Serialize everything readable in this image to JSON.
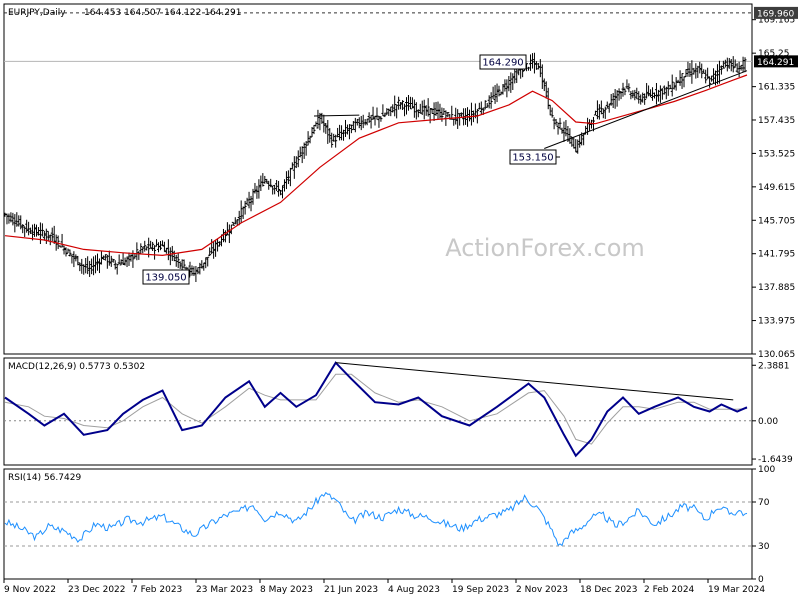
{
  "chart_data": [
    {
      "type": "candlestick",
      "title": "EURJPY,Daily",
      "ohlc_readout": "164.453 164.507 164.122 164.291",
      "watermark": "ActionForex.com",
      "y_ticks": [
        "169.165",
        "165.25",
        "161.335",
        "157.435",
        "153.525",
        "149.615",
        "145.705",
        "141.795",
        "137.885",
        "133.975",
        "130.065"
      ],
      "ylim": [
        130.065,
        171.0
      ],
      "top_label": "169.960",
      "last_price": "164.291",
      "annotations": [
        {
          "text": "164.290",
          "value": 164.29
        },
        {
          "text": "153.150",
          "value": 153.15
        },
        {
          "text": "139.050",
          "value": 139.05
        }
      ],
      "x_labels": [
        "9 Nov 2022",
        "23 Dec 2022",
        "7 Feb 2023",
        "23 Mar 2023",
        "8 May 2023",
        "21 Jun 2023",
        "4 Aug 2023",
        "19 Sep 2023",
        "2 Nov 2023",
        "18 Dec 2023",
        "2 Feb 2024",
        "19 Mar 2024"
      ],
      "price_path": [
        [
          0,
          146.4
        ],
        [
          12,
          144.6
        ],
        [
          24,
          143.8
        ],
        [
          34,
          141.5
        ],
        [
          42,
          139.9
        ],
        [
          50,
          141.4
        ],
        [
          56,
          140.6
        ],
        [
          62,
          141.0
        ],
        [
          70,
          142.4
        ],
        [
          80,
          142.7
        ],
        [
          88,
          141.0
        ],
        [
          96,
          139.5
        ],
        [
          100,
          140.5
        ],
        [
          108,
          143.0
        ],
        [
          116,
          145.3
        ],
        [
          124,
          148.0
        ],
        [
          132,
          150.5
        ],
        [
          140,
          149.0
        ],
        [
          150,
          153.6
        ],
        [
          160,
          157.7
        ],
        [
          166,
          155.0
        ],
        [
          172,
          156.0
        ],
        [
          180,
          157.2
        ],
        [
          192,
          157.9
        ],
        [
          200,
          159.4
        ],
        [
          210,
          158.7
        ],
        [
          220,
          158.3
        ],
        [
          228,
          157.7
        ],
        [
          236,
          157.9
        ],
        [
          244,
          159.2
        ],
        [
          254,
          161.4
        ],
        [
          262,
          163.4
        ],
        [
          268,
          164.1
        ],
        [
          272,
          163.3
        ],
        [
          278,
          157.5
        ],
        [
          284,
          156.2
        ],
        [
          290,
          154.1
        ],
        [
          296,
          156.7
        ],
        [
          300,
          158.1
        ],
        [
          306,
          159.1
        ],
        [
          314,
          161.3
        ],
        [
          322,
          159.9
        ],
        [
          330,
          160.6
        ],
        [
          338,
          161.2
        ],
        [
          346,
          162.9
        ],
        [
          352,
          163.3
        ],
        [
          358,
          162.0
        ],
        [
          366,
          164.2
        ],
        [
          372,
          163.4
        ],
        [
          377,
          164.3
        ]
      ],
      "ma_path": [
        [
          0,
          143.9
        ],
        [
          20,
          143.4
        ],
        [
          40,
          142.3
        ],
        [
          60,
          141.9
        ],
        [
          80,
          141.6
        ],
        [
          100,
          142.3
        ],
        [
          120,
          145.4
        ],
        [
          140,
          147.8
        ],
        [
          160,
          151.9
        ],
        [
          180,
          155.3
        ],
        [
          200,
          157.1
        ],
        [
          220,
          157.5
        ],
        [
          240,
          157.9
        ],
        [
          256,
          159.2
        ],
        [
          268,
          160.8
        ],
        [
          278,
          159.7
        ],
        [
          290,
          157.2
        ],
        [
          300,
          157.0
        ],
        [
          320,
          158.3
        ],
        [
          340,
          159.6
        ],
        [
          356,
          160.9
        ],
        [
          370,
          162.1
        ],
        [
          377,
          162.7
        ]
      ],
      "resistance_line": {
        "from": [
          157,
          157.9
        ],
        "to": [
          180,
          158.0
        ]
      },
      "support_line": {
        "from": [
          274,
          154.1
        ],
        "to": [
          377,
          163.2
        ]
      }
    },
    {
      "type": "line",
      "title": "MACD(12,26,9) 0.5773 0.5302",
      "y_ticks": [
        "2.3881",
        "0.00",
        "-1.6439"
      ],
      "ylim": [
        -1.9,
        2.7
      ],
      "macd": [
        [
          0,
          1.0
        ],
        [
          12,
          0.3
        ],
        [
          20,
          -0.2
        ],
        [
          30,
          0.3
        ],
        [
          40,
          -0.6
        ],
        [
          52,
          -0.4
        ],
        [
          60,
          0.3
        ],
        [
          70,
          0.9
        ],
        [
          80,
          1.3
        ],
        [
          90,
          -0.4
        ],
        [
          100,
          -0.2
        ],
        [
          112,
          1.0
        ],
        [
          124,
          1.7
        ],
        [
          132,
          0.6
        ],
        [
          140,
          1.2
        ],
        [
          148,
          0.6
        ],
        [
          158,
          1.1
        ],
        [
          168,
          2.5
        ],
        [
          176,
          1.8
        ],
        [
          188,
          0.8
        ],
        [
          200,
          0.7
        ],
        [
          210,
          1.0
        ],
        [
          222,
          0.2
        ],
        [
          236,
          -0.2
        ],
        [
          250,
          0.6
        ],
        [
          266,
          1.6
        ],
        [
          274,
          1.0
        ],
        [
          284,
          -0.6
        ],
        [
          290,
          -1.5
        ],
        [
          298,
          -0.8
        ],
        [
          306,
          0.4
        ],
        [
          314,
          1.0
        ],
        [
          322,
          0.3
        ],
        [
          330,
          0.6
        ],
        [
          342,
          1.0
        ],
        [
          350,
          0.6
        ],
        [
          358,
          0.4
        ],
        [
          364,
          0.7
        ],
        [
          372,
          0.4
        ],
        [
          377,
          0.58
        ]
      ],
      "signal": [
        [
          0,
          0.8
        ],
        [
          12,
          0.6
        ],
        [
          20,
          0.2
        ],
        [
          30,
          0.1
        ],
        [
          40,
          -0.2
        ],
        [
          52,
          -0.3
        ],
        [
          60,
          0.0
        ],
        [
          70,
          0.6
        ],
        [
          80,
          1.0
        ],
        [
          90,
          0.3
        ],
        [
          100,
          -0.1
        ],
        [
          112,
          0.6
        ],
        [
          124,
          1.4
        ],
        [
          132,
          1.1
        ],
        [
          140,
          0.9
        ],
        [
          148,
          0.9
        ],
        [
          158,
          0.9
        ],
        [
          168,
          2.0
        ],
        [
          176,
          2.0
        ],
        [
          188,
          1.2
        ],
        [
          200,
          0.8
        ],
        [
          210,
          0.9
        ],
        [
          222,
          0.6
        ],
        [
          236,
          0.0
        ],
        [
          250,
          0.3
        ],
        [
          266,
          1.2
        ],
        [
          274,
          1.3
        ],
        [
          284,
          0.2
        ],
        [
          290,
          -0.8
        ],
        [
          298,
          -1.0
        ],
        [
          306,
          -0.1
        ],
        [
          314,
          0.6
        ],
        [
          322,
          0.6
        ],
        [
          330,
          0.5
        ],
        [
          342,
          0.8
        ],
        [
          350,
          0.8
        ],
        [
          358,
          0.5
        ],
        [
          364,
          0.5
        ],
        [
          372,
          0.5
        ],
        [
          377,
          0.53
        ]
      ],
      "trend_line": {
        "from": [
          168,
          2.5
        ],
        "to": [
          370,
          0.9
        ]
      }
    },
    {
      "type": "line",
      "title": "RSI(14) 56.7429",
      "y_ticks": [
        "100",
        "70",
        "30",
        "0"
      ],
      "ylim": [
        0,
        100
      ],
      "levels": [
        70,
        30
      ],
      "rsi": [
        [
          0,
          52
        ],
        [
          8,
          46
        ],
        [
          16,
          38
        ],
        [
          22,
          48
        ],
        [
          30,
          44
        ],
        [
          38,
          36
        ],
        [
          46,
          50
        ],
        [
          54,
          46
        ],
        [
          62,
          54
        ],
        [
          70,
          52
        ],
        [
          80,
          57
        ],
        [
          88,
          48
        ],
        [
          96,
          40
        ],
        [
          104,
          50
        ],
        [
          112,
          58
        ],
        [
          120,
          62
        ],
        [
          126,
          68
        ],
        [
          132,
          55
        ],
        [
          140,
          62
        ],
        [
          148,
          52
        ],
        [
          156,
          66
        ],
        [
          162,
          78
        ],
        [
          168,
          72
        ],
        [
          176,
          52
        ],
        [
          184,
          60
        ],
        [
          192,
          56
        ],
        [
          200,
          64
        ],
        [
          208,
          58
        ],
        [
          216,
          56
        ],
        [
          224,
          50
        ],
        [
          232,
          46
        ],
        [
          240,
          54
        ],
        [
          248,
          58
        ],
        [
          256,
          62
        ],
        [
          264,
          74
        ],
        [
          270,
          66
        ],
        [
          276,
          50
        ],
        [
          282,
          30
        ],
        [
          286,
          40
        ],
        [
          292,
          46
        ],
        [
          298,
          56
        ],
        [
          304,
          58
        ],
        [
          310,
          48
        ],
        [
          316,
          54
        ],
        [
          322,
          62
        ],
        [
          330,
          50
        ],
        [
          338,
          58
        ],
        [
          344,
          66
        ],
        [
          350,
          64
        ],
        [
          356,
          54
        ],
        [
          362,
          66
        ],
        [
          368,
          60
        ],
        [
          374,
          62
        ],
        [
          377,
          57
        ]
      ]
    }
  ]
}
